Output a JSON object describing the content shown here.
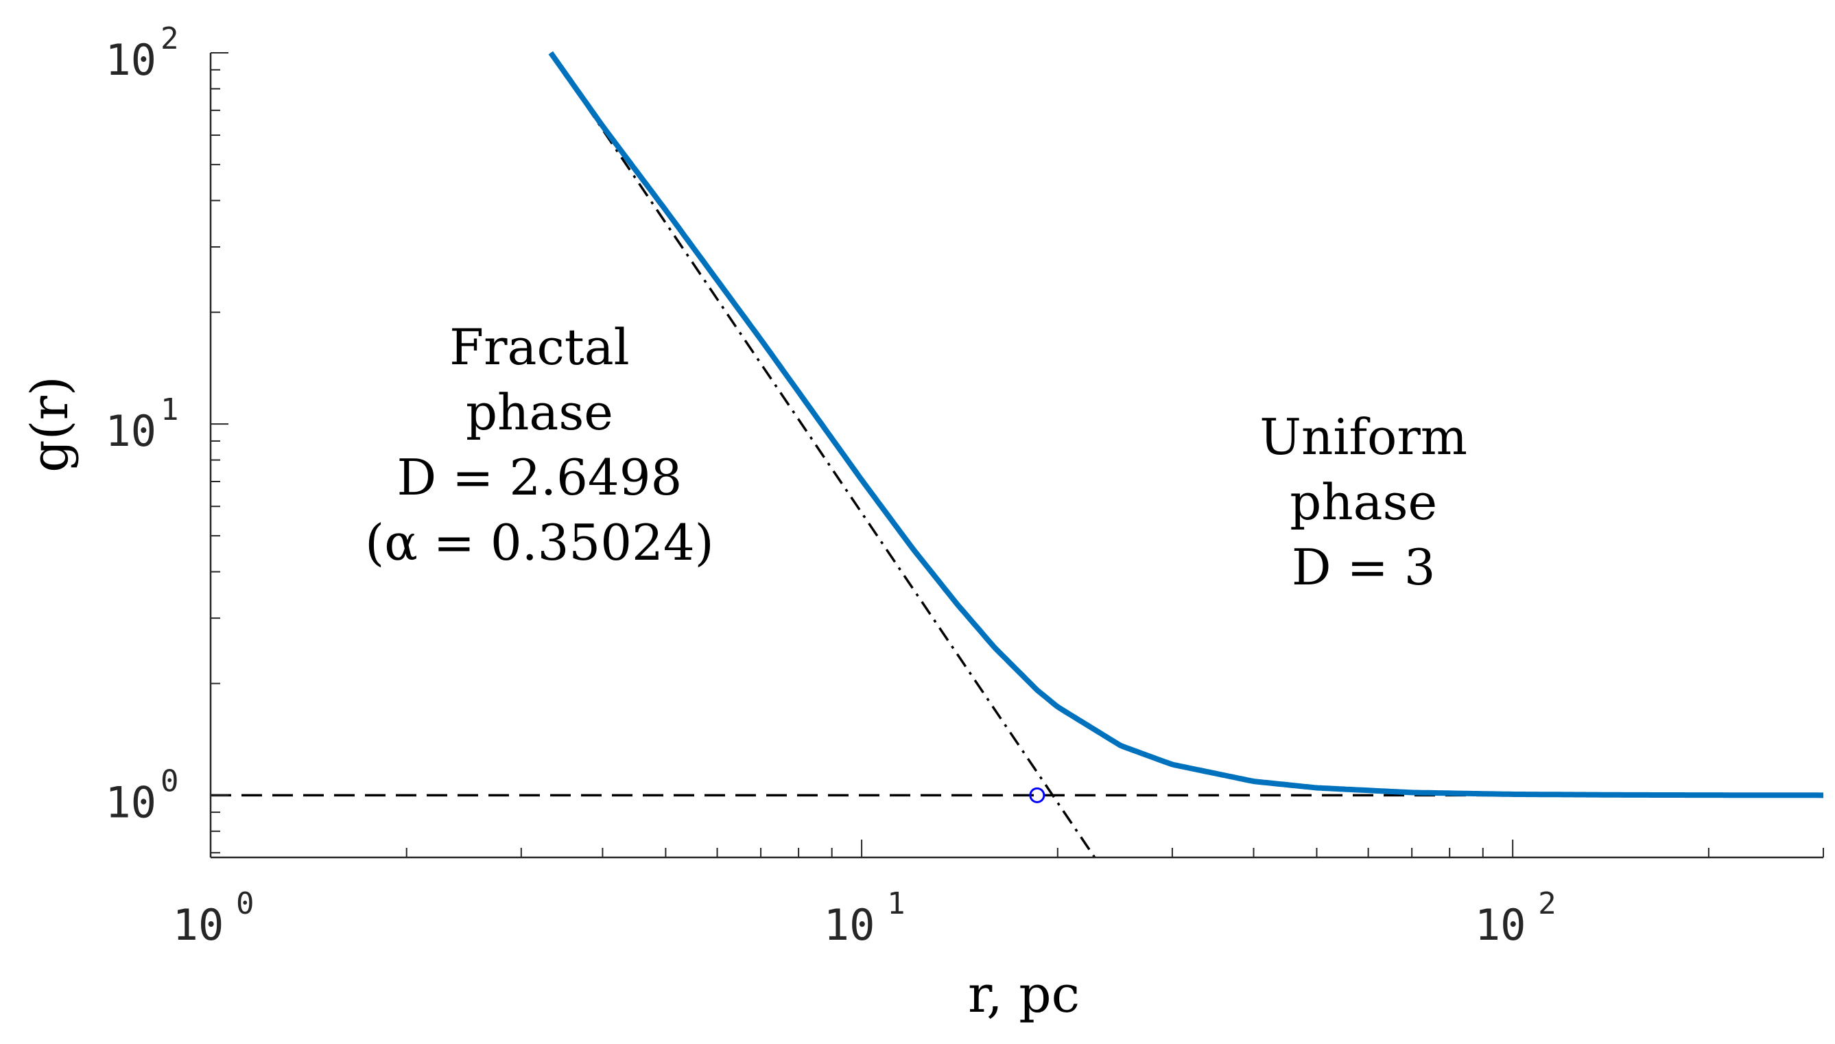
{
  "chart_data": {
    "type": "line",
    "x_scale": "log",
    "y_scale": "log",
    "xlim": [
      1,
      300
    ],
    "ylim": [
      0.68,
      100
    ],
    "xlabel": "r, pc",
    "ylabel": "g(r)",
    "x_ticks": [
      1,
      10,
      100
    ],
    "x_tick_labels": [
      "10",
      "10",
      "10"
    ],
    "x_tick_exponents": [
      "0",
      "1",
      "2"
    ],
    "y_ticks": [
      1,
      10,
      100
    ],
    "y_tick_labels": [
      "10",
      "10",
      "10"
    ],
    "y_tick_exponents": [
      "0",
      "1",
      "2"
    ],
    "grid": false,
    "series": [
      {
        "role": "main-curve",
        "color": "#0072BD",
        "style": "solid",
        "x": [
          3.33,
          4,
          5,
          6,
          7,
          8,
          10,
          12,
          14,
          16,
          18.6,
          20,
          25,
          30,
          40,
          50,
          70,
          100,
          150,
          200,
          300
        ],
        "y": [
          100,
          63.5,
          37.7,
          24.4,
          16.9,
          12.2,
          7.07,
          4.6,
          3.28,
          2.5,
          1.92,
          1.73,
          1.36,
          1.21,
          1.09,
          1.047,
          1.017,
          1.006,
          1.002,
          1.001,
          1.0
        ]
      },
      {
        "role": "fractal-power-law",
        "color": "#000000",
        "style": "dashdot",
        "x": [
          3.33,
          22.8
        ],
        "y": [
          100,
          0.68
        ]
      },
      {
        "role": "uniform-level",
        "color": "#000000",
        "style": "dashed",
        "x": [
          1,
          300
        ],
        "y": [
          1,
          1
        ]
      }
    ],
    "markers": [
      {
        "x": 18.6,
        "y": 1.0,
        "color": "#0000FF",
        "shape": "open-circle"
      }
    ],
    "annotations": [
      {
        "lines": [
          "Fractal",
          "phase",
          "D = 2.6498",
          "(α = 0.35024)"
        ],
        "x": 3.2,
        "y": 14.5
      },
      {
        "lines": [
          "Uniform",
          "phase",
          "D = 3"
        ],
        "x": 59,
        "y": 8.3
      }
    ]
  }
}
